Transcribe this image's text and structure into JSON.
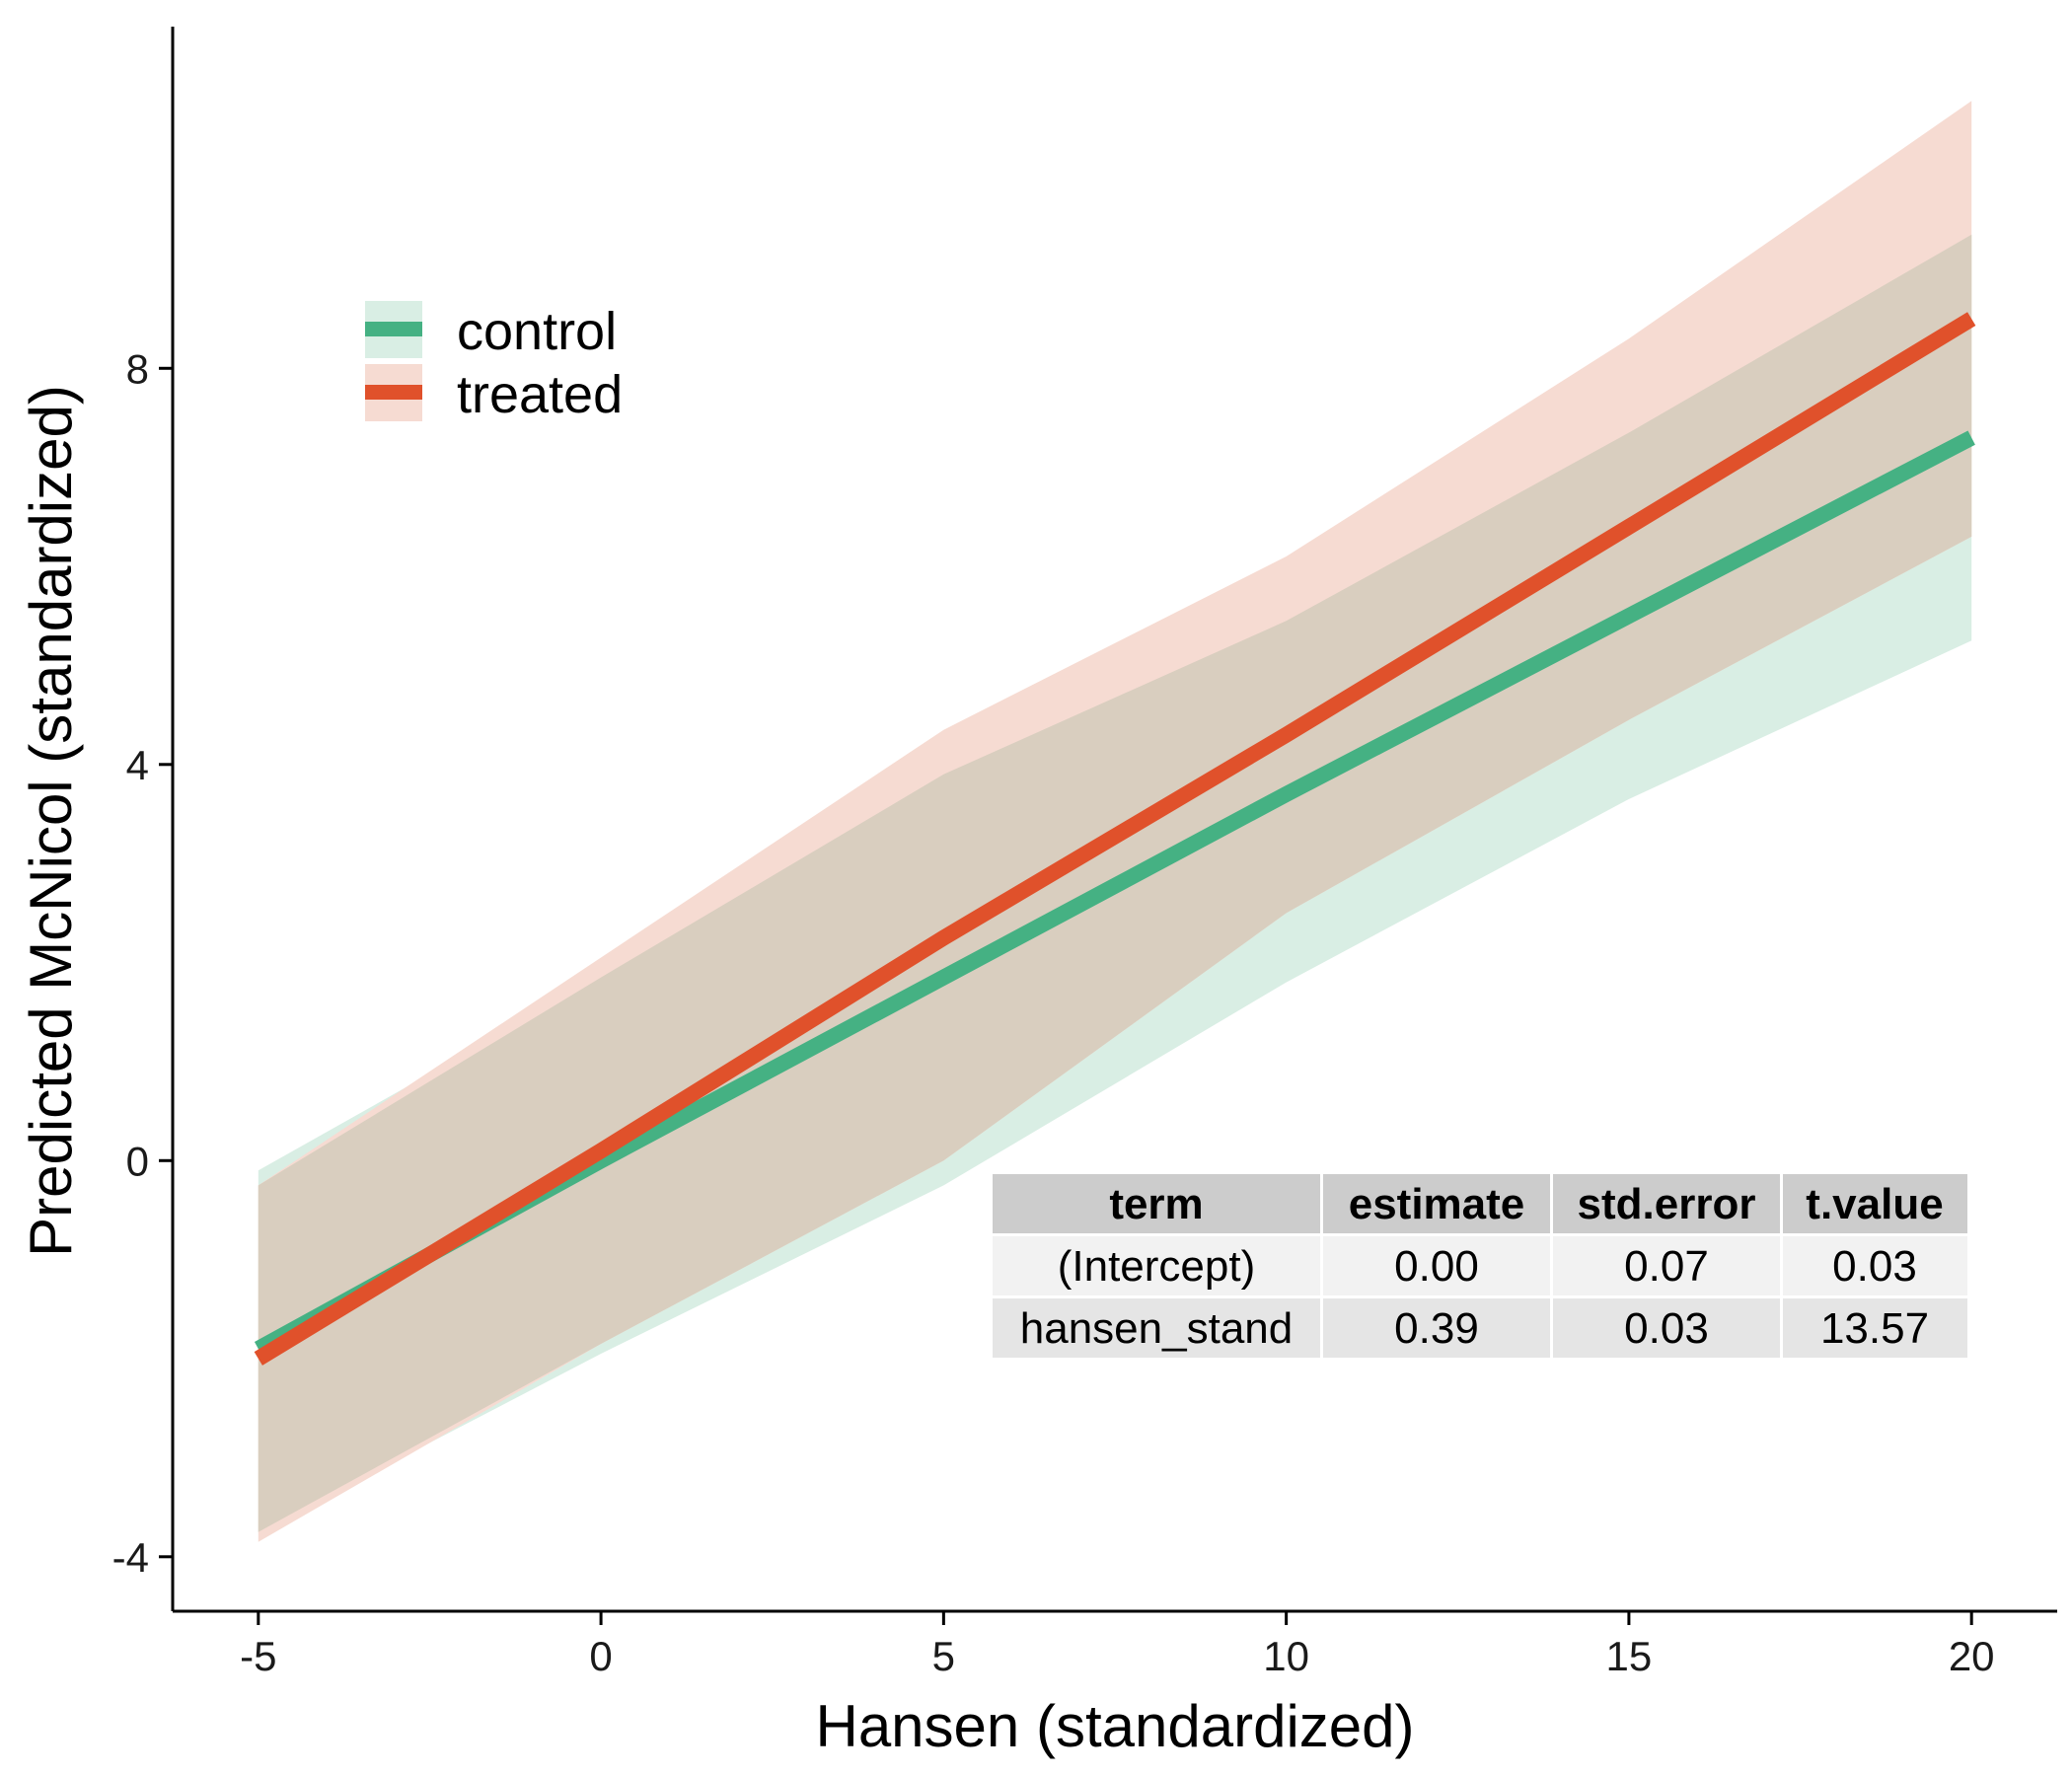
{
  "chart_data": {
    "type": "line",
    "xlabel": "Hansen (standardized)",
    "ylabel": "Predicted McNicol (standardized)",
    "x": [
      -5,
      0,
      5,
      10,
      15,
      20
    ],
    "xlim": [
      -6.25,
      21.25
    ],
    "ylim": [
      -4.55,
      11.45
    ],
    "x_ticks": [
      -5,
      0,
      5,
      10,
      15,
      20
    ],
    "y_ticks": [
      -4,
      0,
      4,
      8
    ],
    "grid": false,
    "legend_position": "top-left",
    "series": [
      {
        "name": "control",
        "color": "#45b183",
        "band_color": "#d9eee4",
        "values": [
          -1.9,
          0.0,
          1.85,
          3.7,
          5.5,
          7.3
        ],
        "lower": [
          -3.75,
          -1.95,
          -0.25,
          1.8,
          3.65,
          5.25
        ],
        "upper": [
          -0.1,
          1.85,
          3.9,
          5.45,
          7.35,
          9.35
        ]
      },
      {
        "name": "treated",
        "color": "#e0512b",
        "band_color": "#f6dbd2",
        "values": [
          -2.0,
          0.1,
          2.25,
          4.3,
          6.4,
          8.5
        ],
        "lower": [
          -3.85,
          -1.85,
          0.0,
          2.5,
          4.45,
          6.3
        ],
        "upper": [
          -0.25,
          2.05,
          4.35,
          6.1,
          8.3,
          10.7
        ]
      }
    ],
    "overlap_color": "#d9cebf"
  },
  "table": {
    "headers": [
      "term",
      "estimate",
      "std.error",
      "t.value"
    ],
    "rows": [
      [
        "(Intercept)",
        "0.00",
        "0.07",
        "0.03"
      ],
      [
        "hansen_stand",
        "0.39",
        "0.03",
        "13.57"
      ]
    ]
  }
}
